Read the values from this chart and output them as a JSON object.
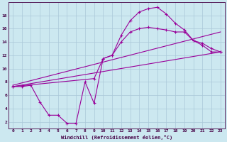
{
  "xlabel": "Windchill (Refroidissement éolien,°C)",
  "bg_color": "#cce8f0",
  "line_color": "#990099",
  "grid_color": "#aac8d8",
  "xlim": [
    -0.5,
    23.5
  ],
  "ylim": [
    1,
    20
  ],
  "xticks": [
    0,
    1,
    2,
    3,
    4,
    5,
    6,
    7,
    8,
    9,
    10,
    11,
    12,
    13,
    14,
    15,
    16,
    17,
    18,
    19,
    20,
    21,
    22,
    23
  ],
  "yticks": [
    2,
    4,
    6,
    8,
    10,
    12,
    14,
    16,
    18
  ],
  "curve_x": [
    0,
    1,
    2,
    3,
    4,
    5,
    6,
    7,
    8,
    9,
    10,
    11,
    12,
    13,
    14,
    15,
    16,
    17,
    18,
    19,
    20,
    21,
    22,
    23
  ],
  "curve_y": [
    7.3,
    7.3,
    7.5,
    5.0,
    3.0,
    3.0,
    1.8,
    1.8,
    8.0,
    4.8,
    11.5,
    12.0,
    15.0,
    17.2,
    18.5,
    19.0,
    19.2,
    18.2,
    16.8,
    15.8,
    14.2,
    13.8,
    13.0,
    12.5
  ],
  "line1_x": [
    0,
    23
  ],
  "line1_y": [
    7.3,
    12.5
  ],
  "line2_x": [
    0,
    23
  ],
  "line2_y": [
    7.5,
    15.5
  ],
  "line3_x": [
    0,
    9,
    10,
    11,
    12,
    13,
    14,
    15,
    16,
    17,
    18,
    19,
    20,
    21,
    22,
    23
  ],
  "line3_y": [
    7.3,
    8.5,
    11.5,
    12.0,
    14.0,
    15.5,
    16.0,
    16.2,
    16.0,
    15.8,
    15.5,
    15.5,
    14.2,
    13.5,
    12.5,
    12.5
  ]
}
